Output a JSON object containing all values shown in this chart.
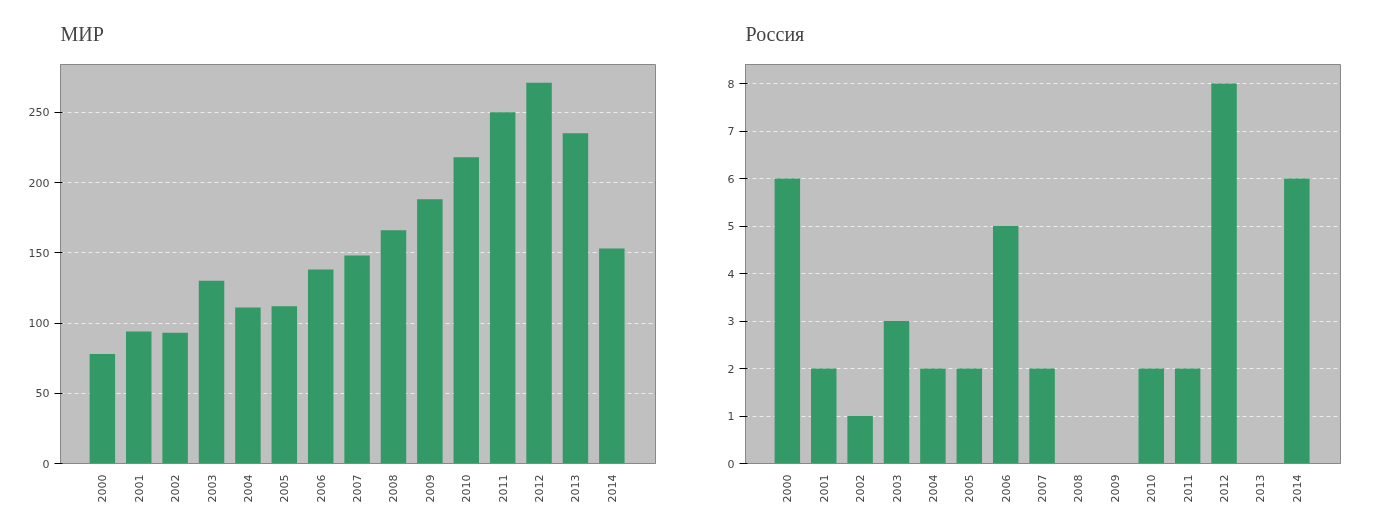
{
  "chart_data": [
    {
      "type": "bar",
      "title": "МИР",
      "categories": [
        "2000",
        "2001",
        "2002",
        "2003",
        "2004",
        "2005",
        "2006",
        "2007",
        "2008",
        "2009",
        "2010",
        "2011",
        "2012",
        "2013",
        "2014"
      ],
      "values": [
        78,
        94,
        93,
        130,
        111,
        112,
        138,
        148,
        166,
        188,
        218,
        250,
        271,
        235,
        153
      ],
      "color": "#339966",
      "ylim": [
        0,
        284
      ],
      "yticks": [
        0,
        50,
        100,
        150,
        200,
        250
      ],
      "grid": "y"
    },
    {
      "type": "bar",
      "title": "Россия",
      "categories": [
        "2000",
        "2001",
        "2002",
        "2003",
        "2004",
        "2005",
        "2006",
        "2007",
        "2008",
        "2009",
        "2010",
        "2011",
        "2012",
        "2013",
        "2014"
      ],
      "values": [
        6,
        2,
        1,
        3,
        2,
        2,
        5,
        2,
        0,
        0,
        2,
        2,
        8,
        0,
        6
      ],
      "color": "#339966",
      "ylim": [
        0,
        8.4
      ],
      "yticks": [
        0,
        1,
        2,
        3,
        4,
        5,
        6,
        7,
        8
      ],
      "grid": "y"
    }
  ]
}
